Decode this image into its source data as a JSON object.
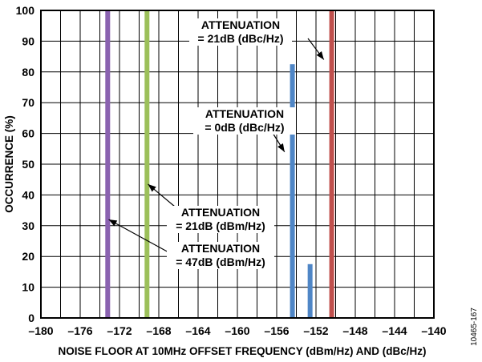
{
  "chart_data": {
    "type": "bar",
    "xlabel": "NOISE FLOOR AT 10MHz OFFSET FREQUENCY (dBm/Hz) AND (dBc/Hz)",
    "ylabel": "OCCURRENCE (%)",
    "xlim": [
      -180,
      -140
    ],
    "ylim": [
      0,
      100
    ],
    "xticks": [
      -180,
      -176,
      -172,
      -168,
      -164,
      -160,
      -156,
      -152,
      -148,
      -144,
      -140
    ],
    "yticks": [
      0,
      10,
      20,
      30,
      40,
      50,
      60,
      70,
      80,
      90,
      100
    ],
    "x_tick_labels": [
      "–180",
      "–176",
      "–172",
      "–168",
      "–164",
      "–160",
      "–156",
      "–152",
      "–148",
      "–144",
      "–140"
    ],
    "y_tick_labels": [
      "0",
      "10",
      "20",
      "30",
      "40",
      "50",
      "60",
      "70",
      "80",
      "90",
      "100"
    ],
    "grid": true,
    "series": [
      {
        "color": "#8a62b0",
        "points": [
          {
            "x": -173.2,
            "y": 100
          }
        ]
      },
      {
        "color": "#9cc05a",
        "points": [
          {
            "x": -169.2,
            "y": 100
          }
        ]
      },
      {
        "color": "#4f86c6",
        "points": [
          {
            "x": -154.4,
            "y": 82.5
          },
          {
            "x": -152.6,
            "y": 17.5
          }
        ]
      },
      {
        "color": "#c0504d",
        "points": [
          {
            "x": -150.4,
            "y": 100
          }
        ]
      }
    ],
    "annotations": [
      {
        "lines": [
          "ATTENUATION",
          "= 21dB (dBc/Hz)"
        ],
        "arrow_target": {
          "x": -151.2,
          "y": 84
        }
      },
      {
        "lines": [
          "ATTENUATION",
          "= 0dB (dBc/Hz)"
        ],
        "arrow_target": {
          "x": -155.2,
          "y": 54
        }
      },
      {
        "lines": [
          "ATTENUATION",
          "= 21dB (dBm/Hz)"
        ],
        "arrow_target": {
          "x": -169.1,
          "y": 43.5
        }
      },
      {
        "lines": [
          "ATTENUATION",
          "= 47dB (dBm/Hz)"
        ],
        "arrow_target": {
          "x": -173.1,
          "y": 32
        }
      }
    ]
  },
  "figure_id": "10465-167"
}
